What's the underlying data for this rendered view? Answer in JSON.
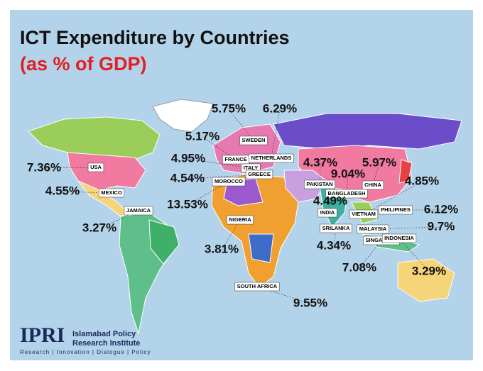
{
  "header": {
    "title": "ICT Expenditure by Countries",
    "subtitle": "(as % of GDP)"
  },
  "countries": [
    {
      "name": "USA",
      "value": 7.36,
      "value_label": "7.36%"
    },
    {
      "name": "MEXICO",
      "value": 4.55,
      "value_label": "4.55%"
    },
    {
      "name": "JAMAICA",
      "value": 3.27,
      "value_label": "3.27%"
    },
    {
      "name": "SWEDEN",
      "value": 5.75,
      "value_label": "5.75%"
    },
    {
      "name": "NETHERLANDS",
      "value": 6.29,
      "value_label": "6.29%"
    },
    {
      "name": "FRANCE",
      "value": 5.17,
      "value_label": "5.17%"
    },
    {
      "name": "ITALY",
      "value": 4.95,
      "value_label": "4.95%"
    },
    {
      "name": "GREECE",
      "value": 4.54,
      "value_label": "4.54%"
    },
    {
      "name": "MOROCCO",
      "value": 13.53,
      "value_label": "13.53%"
    },
    {
      "name": "NIGERIA",
      "value": 3.81,
      "value_label": "3.81%"
    },
    {
      "name": "SOUTH AFRICA",
      "value": 9.55,
      "value_label": "9.55%"
    },
    {
      "name": "PAKISTAN",
      "value": 4.37,
      "value_label": "4.37%"
    },
    {
      "name": "BANGLADESH",
      "value": 9.04,
      "value_label": "9.04%"
    },
    {
      "name": "INDIA",
      "value": 4.49,
      "value_label": "4.49%"
    },
    {
      "name": "CHINA",
      "value": 5.97,
      "value_label": "5.97%"
    },
    {
      "name": "SRILANKA",
      "value": 4.34,
      "value_label": "4.34%"
    },
    {
      "name": "VIETNAM",
      "value": 4.85,
      "value_label": "4.85%"
    },
    {
      "name": "PHILIPINES",
      "value": 6.12,
      "value_label": "6.12%"
    },
    {
      "name": "MALAYSIA",
      "value": 9.7,
      "value_label": "9.7%"
    },
    {
      "name": "SINGAPORE",
      "value": 7.08,
      "value_label": "7.08%"
    },
    {
      "name": "INDONESIA",
      "value": 3.29,
      "value_label": "3.29%"
    }
  ],
  "footer": {
    "logo": "IPRI",
    "org_line1": "Islamabad Policy",
    "org_line2": "Research Institute",
    "tagline": "Research | Innovation | Dialogue | Policy"
  }
}
